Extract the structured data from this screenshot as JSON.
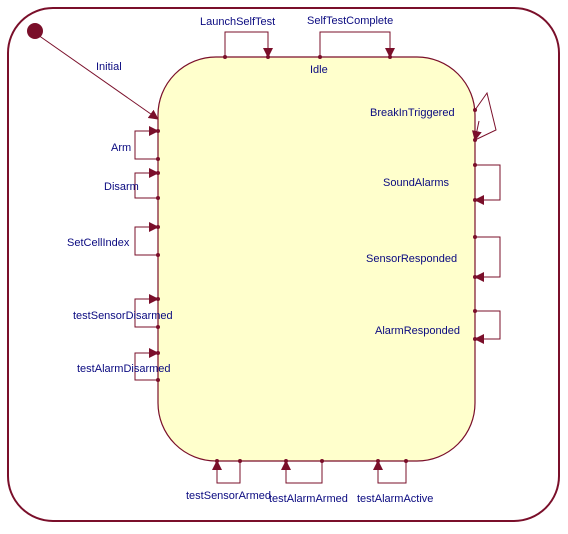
{
  "diagram": {
    "state_name": "Idle",
    "initial_transition": "Initial",
    "colors": {
      "line": "#7a0f2a",
      "state_fill": "#ffffcc",
      "text": "#0a0a80"
    },
    "self_transitions": {
      "top": [
        "LaunchSelfTest",
        "SelfTestComplete"
      ],
      "left": [
        "Arm",
        "Disarm",
        "SetCellIndex",
        "testSensorDisarmed",
        "testAlarmDisarmed"
      ],
      "right": [
        "BreakInTriggered",
        "SoundAlarms",
        "SensorResponded",
        "AlarmResponded"
      ],
      "bottom": [
        "testSensorArmed",
        "testAlarmArmed",
        "testAlarmActive"
      ]
    }
  }
}
